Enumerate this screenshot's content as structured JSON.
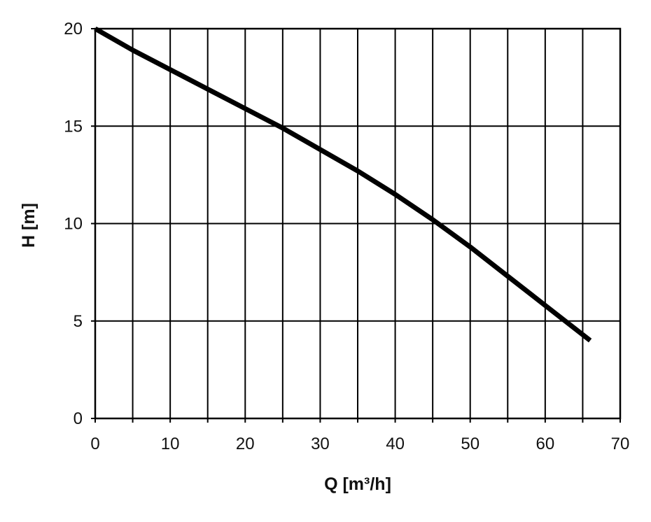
{
  "chart_data": {
    "type": "line",
    "title": "",
    "xlabel": "Q [m³/h]",
    "ylabel": "H [m]",
    "xlim": [
      0,
      70
    ],
    "ylim": [
      0,
      20
    ],
    "xticks": [
      "0",
      "10",
      "20",
      "30",
      "40",
      "50",
      "60",
      "70"
    ],
    "yticks": [
      "0",
      "5",
      "10",
      "15",
      "20"
    ],
    "x_minor_step": 5,
    "grid": true,
    "legend": "none",
    "line_color": "#000000",
    "series": [
      {
        "x": [
          0,
          5,
          10,
          15,
          20,
          25,
          30,
          35,
          40,
          45,
          50,
          55,
          60,
          66
        ],
        "values": [
          20,
          18.9,
          17.9,
          16.9,
          15.9,
          14.9,
          13.8,
          12.7,
          11.5,
          10.2,
          8.8,
          7.3,
          5.8,
          4.0
        ]
      }
    ]
  }
}
